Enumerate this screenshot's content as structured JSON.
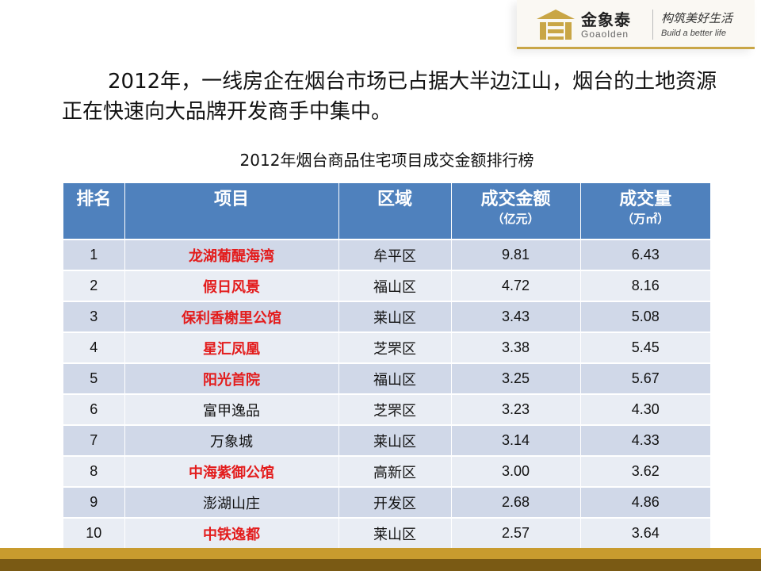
{
  "logo": {
    "brand_cn": "金象泰",
    "brand_en": "Goaolden",
    "slogan_cn": "构筑美好生活",
    "slogan_en": "Build a better life"
  },
  "headline": "2012年，一线房企在烟台市场已占据大半边江山，烟台的土地资源正在快速向大品牌开发商手中集中。",
  "table_title": "2012年烟台商品住宅项目成交金额排行榜",
  "columns": [
    {
      "label": "排名",
      "unit": ""
    },
    {
      "label": "项目",
      "unit": ""
    },
    {
      "label": "区域",
      "unit": ""
    },
    {
      "label": "成交金额",
      "unit": "（亿元）"
    },
    {
      "label": "成交量",
      "unit": "（万㎡）"
    }
  ],
  "rows": [
    {
      "rank": "1",
      "project": "龙湖葡醍海湾",
      "district": "牟平区",
      "amount": "9.81",
      "volume": "6.43",
      "highlight": true
    },
    {
      "rank": "2",
      "project": "假日风景",
      "district": "福山区",
      "amount": "4.72",
      "volume": "8.16",
      "highlight": true
    },
    {
      "rank": "3",
      "project": "保利香榭里公馆",
      "district": "莱山区",
      "amount": "3.43",
      "volume": "5.08",
      "highlight": true
    },
    {
      "rank": "4",
      "project": "星汇凤凰",
      "district": "芝罘区",
      "amount": "3.38",
      "volume": "5.45",
      "highlight": true
    },
    {
      "rank": "5",
      "project": "阳光首院",
      "district": "福山区",
      "amount": "3.25",
      "volume": "5.67",
      "highlight": true
    },
    {
      "rank": "6",
      "project": "富甲逸品",
      "district": "芝罘区",
      "amount": "3.23",
      "volume": "4.30",
      "highlight": false
    },
    {
      "rank": "7",
      "project": "万象城",
      "district": "莱山区",
      "amount": "3.14",
      "volume": "4.33",
      "highlight": false
    },
    {
      "rank": "8",
      "project": "中海紫御公馆",
      "district": "高新区",
      "amount": "3.00",
      "volume": "3.62",
      "highlight": true
    },
    {
      "rank": "9",
      "project": "澎湖山庄",
      "district": "开发区",
      "amount": "2.68",
      "volume": "4.86",
      "highlight": false
    },
    {
      "rank": "10",
      "project": "中铁逸都",
      "district": "莱山区",
      "amount": "2.57",
      "volume": "3.64",
      "highlight": true
    }
  ],
  "colors": {
    "header_bg": "#4f81bd",
    "row_odd": "#d0d8e8",
    "row_even": "#e9edf4",
    "highlight_text": "#e31c1c",
    "bar_gold": "#c89b2e",
    "bar_dark": "#7a5a14"
  }
}
